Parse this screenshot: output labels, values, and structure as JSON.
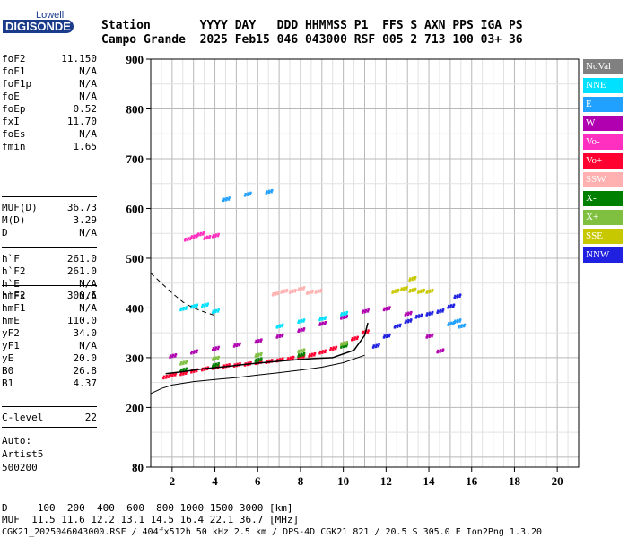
{
  "logo": {
    "top": "Lowell",
    "bottom": "DIGISONDE"
  },
  "header": {
    "line1": "Station       YYYY DAY   DDD HHMMSS P1  FFS S AXN PPS IGA PS",
    "line2": "Campo Grande  2025 Feb15 046 043000 RSF 005 2 713 100 03+ 36"
  },
  "params_group1": [
    {
      "label": "foF2",
      "value": "11.150"
    },
    {
      "label": "foF1",
      "value": "N/A"
    },
    {
      "label": "foF1p",
      "value": "N/A"
    },
    {
      "label": "foE",
      "value": "N/A"
    },
    {
      "label": "foEp",
      "value": "0.52"
    },
    {
      "label": "fxI",
      "value": "11.70"
    },
    {
      "label": "foEs",
      "value": "N/A"
    },
    {
      "label": "fmin",
      "value": "1.65"
    }
  ],
  "params_group2": [
    {
      "label": "MUF(D)",
      "value": "36.73"
    },
    {
      "label": "M(D)",
      "value": "3.29"
    },
    {
      "label": "D",
      "value": "N/A"
    }
  ],
  "params_group3": [
    {
      "label": "h`F",
      "value": "261.0"
    },
    {
      "label": "h`F2",
      "value": "261.0"
    },
    {
      "label": "h`E",
      "value": "N/A"
    },
    {
      "label": "h`Es",
      "value": "N/A"
    }
  ],
  "params_group4": [
    {
      "label": "hmF2",
      "value": "300.5"
    },
    {
      "label": "hmF1",
      "value": "N/A"
    },
    {
      "label": "hmE",
      "value": "110.0"
    },
    {
      "label": "yF2",
      "value": "34.0"
    },
    {
      "label": "yF1",
      "value": "N/A"
    },
    {
      "label": "yE",
      "value": "20.0"
    },
    {
      "label": "B0",
      "value": "26.8"
    },
    {
      "label": "B1",
      "value": "4.37"
    }
  ],
  "clevel": {
    "label": "C-level",
    "value": "22"
  },
  "auto": {
    "line1": "Auto:",
    "line2": "Artist5",
    "line3": "500200"
  },
  "bottom": {
    "d_line": "D     100  200  400  600  800 1000 1500 3000 [km]",
    "muf_line": "MUF  11.5 11.6 12.2 13.1 14.5 16.4 22.1 36.7 [MHz]",
    "footer": "CGK21_2025046043000.RSF / 404fx512h 50 kHz 2.5 km / DPS-4D CGK21 821 / 20.5 S 305.0 E Ion2Png 1.3.20"
  },
  "legend": [
    {
      "label": "NoVal",
      "color": "#808080"
    },
    {
      "label": "NNE",
      "color": "#00e0ff"
    },
    {
      "label": "E",
      "color": "#20a0ff"
    },
    {
      "label": "W",
      "color": "#b000b0"
    },
    {
      "label": "Vo-",
      "color": "#ff30c0"
    },
    {
      "label": "Vo+",
      "color": "#ff0030"
    },
    {
      "label": "SSW",
      "color": "#ffb0b0"
    },
    {
      "label": "X-",
      "color": "#008000"
    },
    {
      "label": "X+",
      "color": "#80c040"
    },
    {
      "label": "SSE",
      "color": "#c8c800"
    },
    {
      "label": "NNW",
      "color": "#2020e0"
    }
  ],
  "chart_data": {
    "type": "scatter",
    "xlabel": "",
    "ylabel": "",
    "xlim": [
      1,
      21
    ],
    "ylim": [
      80,
      900
    ],
    "x_ticks": [
      2,
      4,
      6,
      8,
      10,
      12,
      14,
      16,
      18,
      20
    ],
    "y_ticks": [
      80,
      200,
      300,
      400,
      500,
      600,
      700,
      800,
      900
    ],
    "grid": true,
    "series": [
      {
        "name": "Vo+",
        "color": "#ff0030",
        "points": [
          [
            1.7,
            268
          ],
          [
            2.0,
            272
          ],
          [
            2.5,
            275
          ],
          [
            3.0,
            280
          ],
          [
            3.5,
            284
          ],
          [
            4.0,
            287
          ],
          [
            4.5,
            290
          ],
          [
            5.0,
            292
          ],
          [
            5.5,
            294
          ],
          [
            6.0,
            297
          ],
          [
            6.5,
            299
          ],
          [
            7.0,
            302
          ],
          [
            7.5,
            305
          ],
          [
            8.0,
            308
          ],
          [
            8.5,
            312
          ],
          [
            9.0,
            318
          ],
          [
            9.5,
            325
          ],
          [
            10.0,
            335
          ],
          [
            10.5,
            345
          ],
          [
            11.0,
            358
          ]
        ]
      },
      {
        "name": "W",
        "color": "#b000b0",
        "points": [
          [
            2.0,
            310
          ],
          [
            3.0,
            318
          ],
          [
            4.0,
            325
          ],
          [
            5.0,
            332
          ],
          [
            6.0,
            340
          ],
          [
            7.0,
            350
          ],
          [
            8.0,
            362
          ],
          [
            9.0,
            375
          ],
          [
            10.0,
            388
          ],
          [
            11.0,
            400
          ],
          [
            12.0,
            405
          ],
          [
            13.0,
            395
          ],
          [
            14.0,
            350
          ],
          [
            14.5,
            320
          ]
        ]
      },
      {
        "name": "NNE",
        "color": "#00e0ff",
        "points": [
          [
            2.5,
            405
          ],
          [
            3.0,
            410
          ],
          [
            3.5,
            412
          ],
          [
            4.0,
            400
          ],
          [
            7.0,
            370
          ],
          [
            8.0,
            380
          ],
          [
            9.0,
            385
          ],
          [
            10.0,
            395
          ]
        ]
      },
      {
        "name": "NNW",
        "color": "#2020e0",
        "points": [
          [
            11.5,
            330
          ],
          [
            12.0,
            350
          ],
          [
            12.5,
            370
          ],
          [
            13.0,
            380
          ],
          [
            13.5,
            390
          ],
          [
            14.0,
            395
          ],
          [
            14.5,
            400
          ],
          [
            15.0,
            410
          ],
          [
            15.3,
            430
          ]
        ]
      },
      {
        "name": "SSE",
        "color": "#c8c800",
        "points": [
          [
            12.4,
            440
          ],
          [
            12.8,
            445
          ],
          [
            13.2,
            442
          ],
          [
            13.6,
            440
          ],
          [
            14.0,
            440
          ],
          [
            13.2,
            465
          ]
        ]
      },
      {
        "name": "E",
        "color": "#20a0ff",
        "points": [
          [
            15.0,
            375
          ],
          [
            15.3,
            380
          ],
          [
            15.5,
            370
          ],
          [
            4.5,
            625
          ],
          [
            5.5,
            635
          ],
          [
            6.5,
            640
          ]
        ]
      },
      {
        "name": "Vo-",
        "color": "#ff30c0",
        "points": [
          [
            2.7,
            545
          ],
          [
            3.0,
            550
          ],
          [
            3.3,
            555
          ],
          [
            3.6,
            548
          ],
          [
            4.0,
            552
          ]
        ]
      },
      {
        "name": "SSW",
        "color": "#ffb0b0",
        "points": [
          [
            6.8,
            435
          ],
          [
            7.2,
            440
          ],
          [
            7.6,
            440
          ],
          [
            8.0,
            445
          ],
          [
            8.4,
            438
          ],
          [
            8.8,
            440
          ]
        ]
      },
      {
        "name": "X-",
        "color": "#008000",
        "points": [
          [
            2.5,
            282
          ],
          [
            4.0,
            292
          ],
          [
            6.0,
            302
          ],
          [
            8.0,
            312
          ],
          [
            10.0,
            330
          ]
        ]
      },
      {
        "name": "X+",
        "color": "#80c040",
        "points": [
          [
            2.5,
            296
          ],
          [
            4.0,
            305
          ],
          [
            6.0,
            312
          ],
          [
            8.0,
            320
          ],
          [
            10.0,
            335
          ]
        ]
      }
    ],
    "profile_solid": [
      [
        1.7,
        268
      ],
      [
        2.5,
        272
      ],
      [
        3.5,
        278
      ],
      [
        4.5,
        282
      ],
      [
        5.5,
        287
      ],
      [
        6.5,
        291
      ],
      [
        7.5,
        295
      ],
      [
        8.5,
        298
      ],
      [
        9.5,
        300
      ],
      [
        10.5,
        315
      ],
      [
        11.0,
        345
      ],
      [
        11.15,
        370
      ]
    ],
    "profile_dashed_upper": [
      [
        1.0,
        470
      ],
      [
        1.5,
        450
      ],
      [
        2.0,
        430
      ],
      [
        2.5,
        412
      ],
      [
        3.0,
        400
      ],
      [
        3.5,
        392
      ],
      [
        4.0,
        385
      ]
    ],
    "profile_lower": [
      [
        1.0,
        228
      ],
      [
        1.5,
        238
      ],
      [
        2.0,
        245
      ],
      [
        3.0,
        252
      ],
      [
        4.0,
        256
      ],
      [
        5.0,
        260
      ],
      [
        6.0,
        265
      ],
      [
        7.0,
        270
      ],
      [
        8.0,
        275
      ],
      [
        9.0,
        281
      ],
      [
        10.0,
        290
      ],
      [
        11.0,
        305
      ]
    ]
  }
}
